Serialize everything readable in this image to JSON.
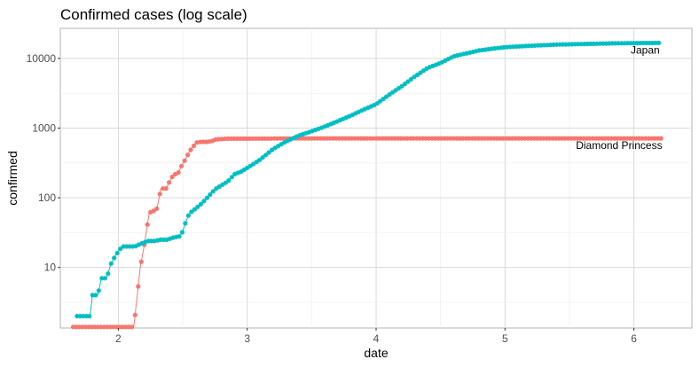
{
  "chart_data": {
    "type": "line",
    "title": "Confirmed cases (log scale)",
    "xlabel": "date",
    "ylabel": "confirmed",
    "y_scale": "log10",
    "grid": true,
    "theme": "light",
    "legend": "none (direct labels at line ends)",
    "xlim": [
      1.55,
      6.45
    ],
    "ylim": [
      1.35,
      27000
    ],
    "x_ticks": [
      2,
      3,
      4,
      5,
      6
    ],
    "x_tick_labels": [
      "2",
      "3",
      "4",
      "5",
      "6"
    ],
    "y_ticks": [
      10,
      100,
      1000,
      10000
    ],
    "y_tick_labels": [
      "10",
      "100",
      "1000",
      "10000"
    ],
    "series": [
      {
        "name": "Diamond Princess",
        "color": "#F8766D",
        "x": [
          1.65,
          2.12,
          2.17,
          2.2,
          2.24,
          2.27,
          2.3,
          2.33,
          2.37,
          2.4,
          2.43,
          2.46,
          2.49,
          2.52,
          2.55,
          2.58,
          2.61,
          2.64,
          2.68,
          2.72,
          2.76,
          2.85,
          3.0,
          3.5,
          4.0,
          4.5,
          5.0,
          5.5,
          6.0,
          6.22
        ],
        "values": [
          1.4,
          1.4,
          10,
          20,
          61,
          64,
          70,
          135,
          136,
          174,
          218,
          218,
          285,
          355,
          454,
          542,
          621,
          634,
          634,
          645,
          691,
          705,
          706,
          712,
          712,
          712,
          712,
          712,
          712,
          712
        ]
      },
      {
        "name": "Japan",
        "color": "#00BFC4",
        "x": [
          1.68,
          1.73,
          1.78,
          1.8,
          1.84,
          1.87,
          1.91,
          1.94,
          1.98,
          2.03,
          2.08,
          2.13,
          2.18,
          2.23,
          2.28,
          2.33,
          2.38,
          2.43,
          2.48,
          2.5,
          2.52,
          2.55,
          2.6,
          2.65,
          2.7,
          2.75,
          2.8,
          2.85,
          2.9,
          2.95,
          3.0,
          3.1,
          3.2,
          3.3,
          3.4,
          3.5,
          3.6,
          3.7,
          3.8,
          3.9,
          4.0,
          4.1,
          4.2,
          4.3,
          4.4,
          4.5,
          4.6,
          4.7,
          4.8,
          4.9,
          5.0,
          5.2,
          5.4,
          5.6,
          5.8,
          6.0,
          6.2
        ],
        "values": [
          2,
          2,
          2,
          4,
          4,
          7,
          7,
          11,
          15,
          20,
          20,
          20,
          22,
          24,
          24,
          25,
          25,
          27,
          28,
          33,
          43,
          59,
          70,
          84,
          105,
          132,
          151,
          172,
          217,
          236,
          268,
          352,
          500,
          640,
          780,
          900,
          1050,
          1250,
          1500,
          1830,
          2200,
          3000,
          4000,
          5500,
          7300,
          8600,
          10700,
          11800,
          13000,
          13800,
          14500,
          15200,
          15800,
          16100,
          16400,
          16600,
          16700
        ]
      }
    ]
  }
}
